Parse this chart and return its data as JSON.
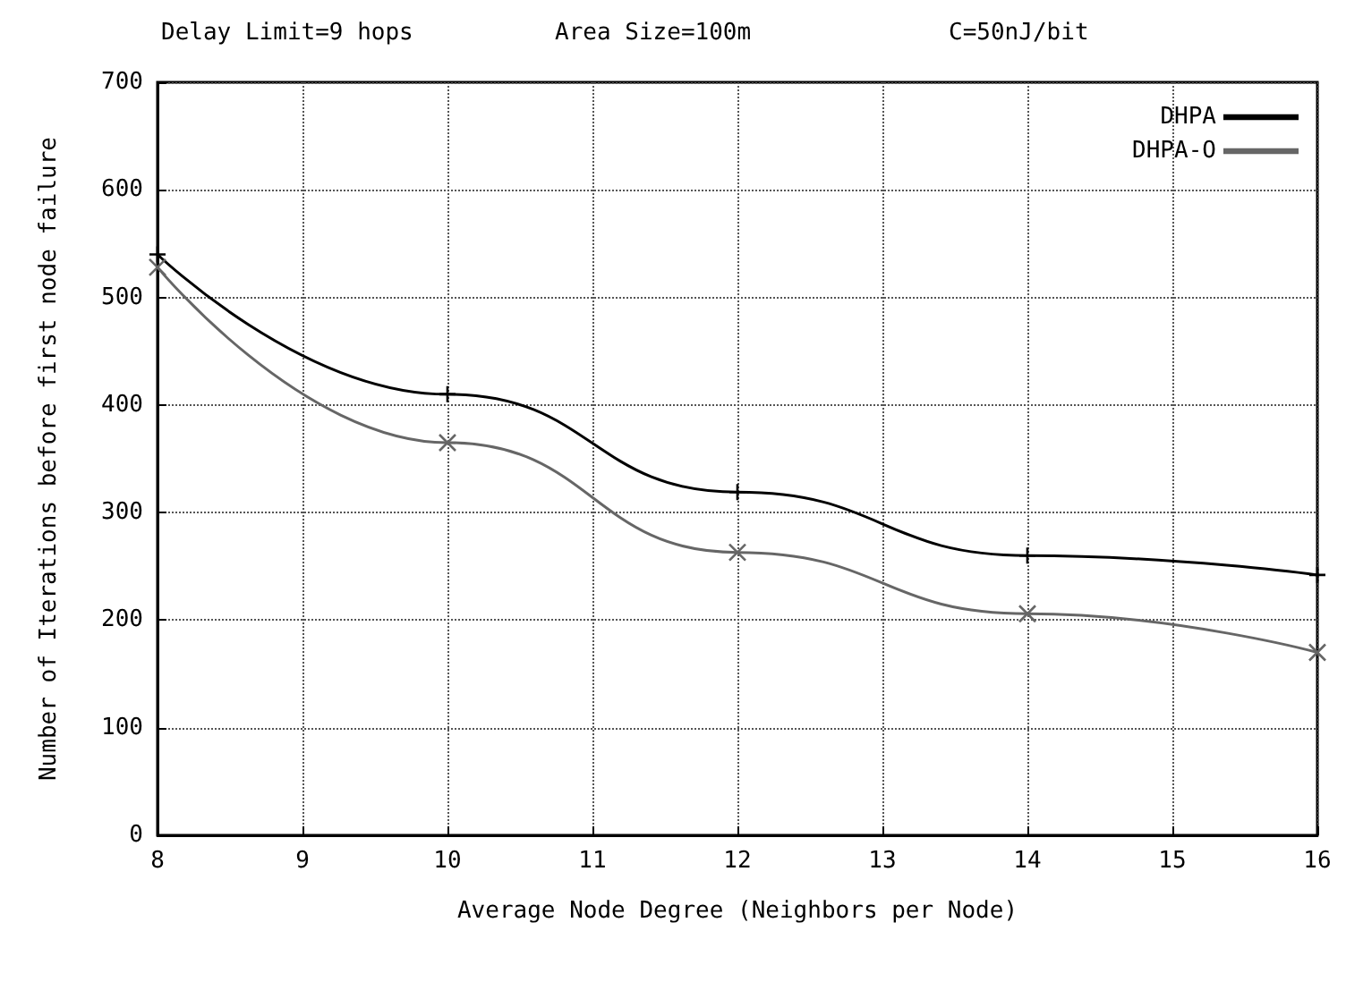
{
  "chart_data": {
    "type": "line",
    "annotations": [
      "Delay Limit=9 hops",
      "Area Size=100m",
      "C=50nJ/bit"
    ],
    "xlabel": "Average Node Degree (Neighbors per Node)",
    "ylabel": "Number of Iterations before first node failure",
    "x": [
      8,
      10,
      12,
      14,
      16
    ],
    "series": [
      {
        "name": "DHPA",
        "color": "#000000",
        "marker": "plus",
        "values": [
          540,
          410,
          319,
          260,
          242
        ]
      },
      {
        "name": "DHPA-O",
        "color": "#666666",
        "marker": "cross",
        "values": [
          528,
          365,
          263,
          206,
          170
        ]
      }
    ],
    "xlim": [
      8,
      16
    ],
    "xticks": [
      8,
      9,
      10,
      11,
      12,
      13,
      14,
      15,
      16
    ],
    "ylim": [
      0,
      700
    ],
    "yticks": [
      0,
      100,
      200,
      300,
      400,
      500,
      600,
      700
    ],
    "grid": true,
    "legend": "top right",
    "line_style": "solid"
  }
}
